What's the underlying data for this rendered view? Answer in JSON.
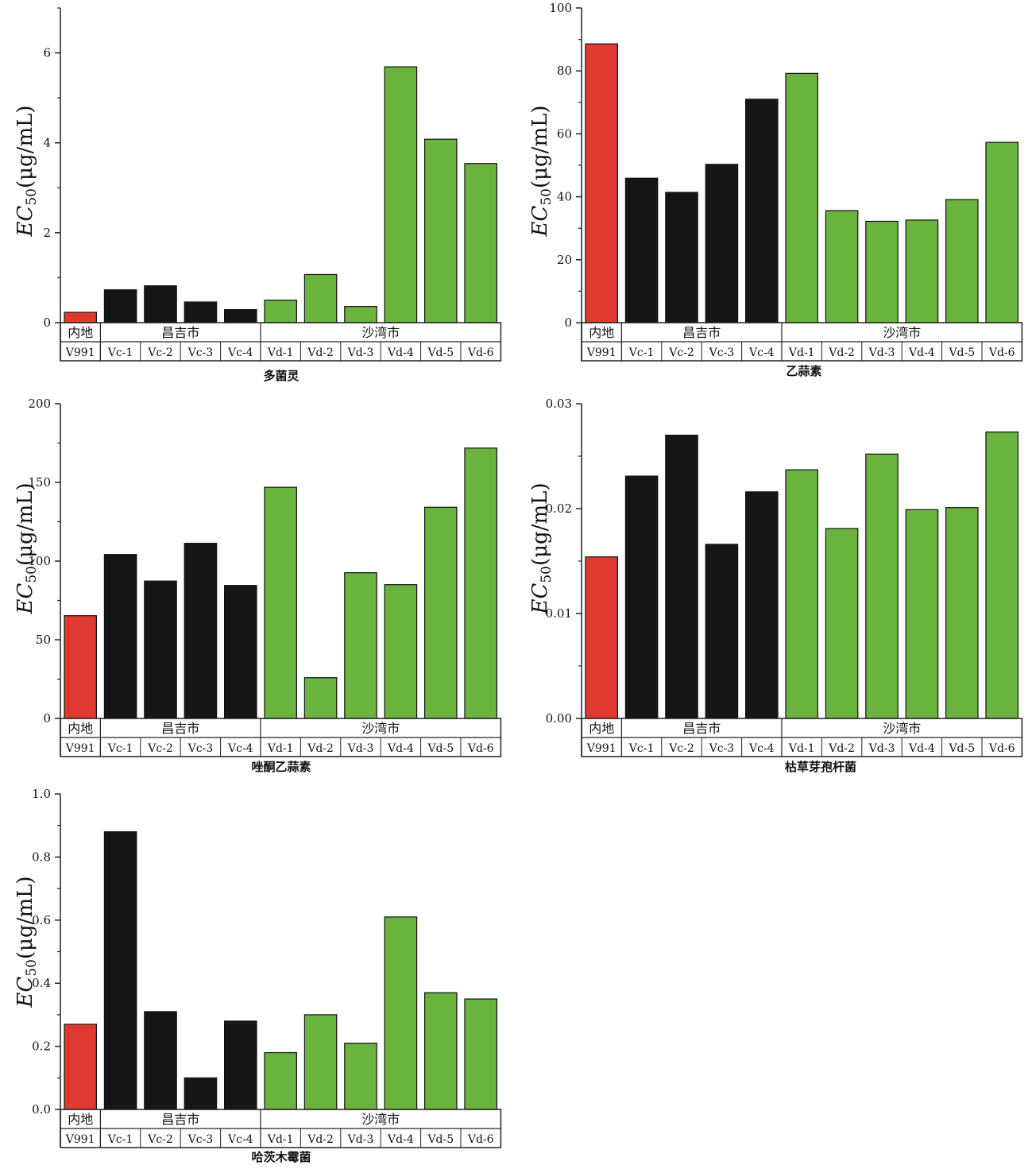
{
  "colors": {
    "mainland": "#e03a30",
    "changji": "#161616",
    "shawan": "#6ab33f",
    "axis": "#222222"
  },
  "group_labels": [
    "内地",
    "昌吉市",
    "沙湾市"
  ],
  "categories": [
    "V991",
    "Vc-1",
    "Vc-2",
    "Vc-3",
    "Vc-4",
    "Vd-1",
    "Vd-2",
    "Vd-3",
    "Vd-4",
    "Vd-5",
    "Vd-6"
  ],
  "bar_groups": [
    "mainland",
    "changji",
    "changji",
    "changji",
    "changji",
    "shawan",
    "shawan",
    "shawan",
    "shawan",
    "shawan",
    "shawan"
  ],
  "ylabel_main": "EC",
  "ylabel_sub": "50",
  "ylabel_unit": "(μg/mL)",
  "chart_data": [
    {
      "type": "bar",
      "caption": "多菌灵",
      "categories": [
        "V991",
        "Vc-1",
        "Vc-2",
        "Vc-3",
        "Vc-4",
        "Vd-1",
        "Vd-2",
        "Vd-3",
        "Vd-4",
        "Vd-5",
        "Vd-6"
      ],
      "values": [
        0.23,
        0.73,
        0.82,
        0.46,
        0.29,
        0.5,
        1.07,
        0.36,
        5.69,
        4.08,
        3.54
      ],
      "ylim": [
        0,
        7
      ],
      "yticks": [
        "0",
        "2",
        "4",
        "6"
      ],
      "ytick_values": [
        0,
        2,
        4,
        6
      ]
    },
    {
      "type": "bar",
      "caption": "乙蒜素",
      "categories": [
        "V991",
        "Vc-1",
        "Vc-2",
        "Vc-3",
        "Vc-4",
        "Vd-1",
        "Vd-2",
        "Vd-3",
        "Vd-4",
        "Vd-5",
        "Vd-6"
      ],
      "values": [
        88.6,
        45.9,
        41.4,
        50.3,
        71.0,
        79.2,
        35.6,
        32.2,
        32.6,
        39.1,
        57.3
      ],
      "ylim": [
        0,
        100
      ],
      "yticks": [
        "0",
        "20",
        "40",
        "60",
        "80",
        "100"
      ],
      "ytick_values": [
        0,
        20,
        40,
        60,
        80,
        100
      ]
    },
    {
      "type": "bar",
      "caption": "唑酮乙蒜素",
      "categories": [
        "V991",
        "Vc-1",
        "Vc-2",
        "Vc-3",
        "Vc-4",
        "Vd-1",
        "Vd-2",
        "Vd-3",
        "Vd-4",
        "Vd-5",
        "Vd-6"
      ],
      "values": [
        65.3,
        104.2,
        87.3,
        111.3,
        84.5,
        146.9,
        25.9,
        92.6,
        85.0,
        134.2,
        171.8
      ],
      "ylim": [
        0,
        200
      ],
      "yticks": [
        "0",
        "50",
        "100",
        "150",
        "200"
      ],
      "ytick_values": [
        0,
        50,
        100,
        150,
        200
      ]
    },
    {
      "type": "bar",
      "caption": "枯草芽孢杆菌",
      "categories": [
        "V991",
        "Vc-1",
        "Vc-2",
        "Vc-3",
        "Vc-4",
        "Vd-1",
        "Vd-2",
        "Vd-3",
        "Vd-4",
        "Vd-5",
        "Vd-6"
      ],
      "values": [
        0.0154,
        0.0231,
        0.027,
        0.0166,
        0.0216,
        0.0237,
        0.0181,
        0.0252,
        0.0199,
        0.0201,
        0.0273
      ],
      "ylim": [
        0,
        0.03
      ],
      "yticks": [
        "0.00",
        "0.01",
        "0.02",
        "0.03"
      ],
      "ytick_values": [
        0,
        0.01,
        0.02,
        0.03
      ]
    },
    {
      "type": "bar",
      "caption": "哈茨木霉菌",
      "categories": [
        "V991",
        "Vc-1",
        "Vc-2",
        "Vc-3",
        "Vc-4",
        "Vd-1",
        "Vd-2",
        "Vd-3",
        "Vd-4",
        "Vd-5",
        "Vd-6"
      ],
      "values": [
        0.27,
        0.88,
        0.31,
        0.1,
        0.28,
        0.18,
        0.3,
        0.21,
        0.61,
        0.37,
        0.35
      ],
      "ylim": [
        0,
        1.0
      ],
      "yticks": [
        "0.0",
        "0.2",
        "0.4",
        "0.6",
        "0.8",
        "1.0"
      ],
      "ytick_values": [
        0,
        0.2,
        0.4,
        0.6,
        0.8,
        1.0
      ]
    }
  ]
}
